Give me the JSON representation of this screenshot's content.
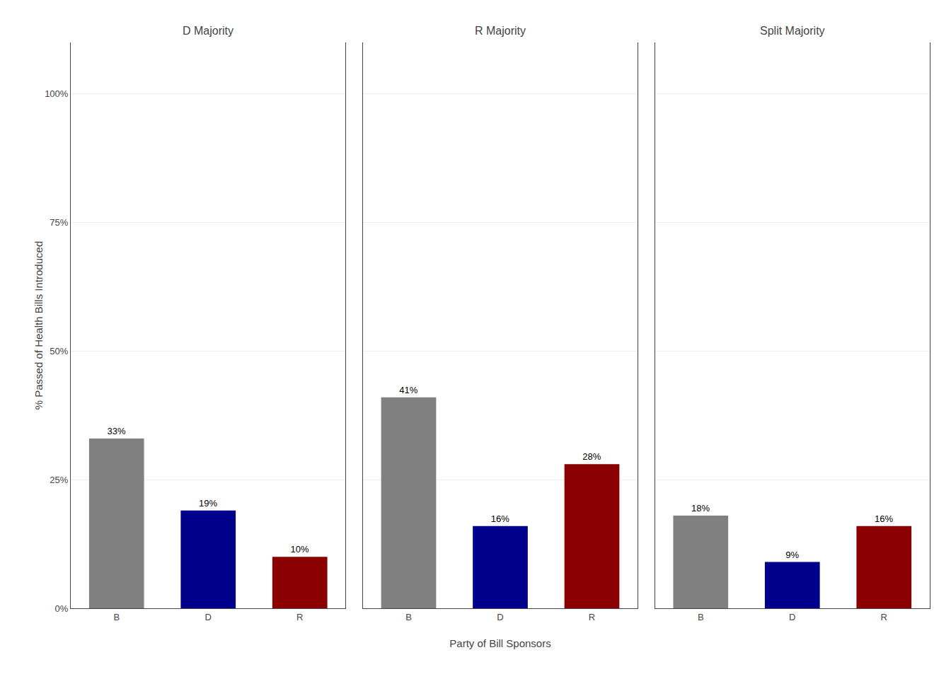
{
  "chart_data": [
    {
      "type": "bar",
      "title": "D Majority",
      "categories": [
        "B",
        "D",
        "R"
      ],
      "values": [
        33,
        19,
        10
      ],
      "value_labels": [
        "33%",
        "19%",
        "10%"
      ],
      "data_labels": true,
      "colors": [
        "#808080",
        "#00008B",
        "#8B0000"
      ],
      "ylabel": "% Passed of Health Bills Introduced",
      "ylim": [
        0,
        110
      ],
      "yticks": [
        {
          "value": 0,
          "label": "0%"
        },
        {
          "value": 25,
          "label": "25%"
        },
        {
          "value": 50,
          "label": "50%"
        },
        {
          "value": 75,
          "label": "75%"
        },
        {
          "value": 100,
          "label": "100%"
        }
      ],
      "grid": true
    },
    {
      "type": "bar",
      "title": "R Majority",
      "categories": [
        "B",
        "D",
        "R"
      ],
      "values": [
        41,
        16,
        28
      ],
      "value_labels": [
        "41%",
        "16%",
        "28%"
      ],
      "data_labels": true,
      "colors": [
        "#808080",
        "#00008B",
        "#8B0000"
      ],
      "xlabel": "Party of Bill Sponsors",
      "ylim": [
        0,
        110
      ],
      "yticks": [
        0,
        25,
        50,
        75,
        100
      ],
      "tick_labels": "x",
      "grid": true
    },
    {
      "type": "bar",
      "title": "Split Majority",
      "categories": [
        "B",
        "D",
        "R"
      ],
      "values": [
        18,
        9,
        16
      ],
      "value_labels": [
        "18%",
        "9%",
        "16%"
      ],
      "data_labels": true,
      "colors": [
        "#808080",
        "#00008B",
        "#8B0000"
      ],
      "ylim": [
        0,
        110
      ],
      "yticks": [
        0,
        25,
        50,
        75,
        100
      ],
      "tick_labels": "x",
      "grid": true
    }
  ]
}
